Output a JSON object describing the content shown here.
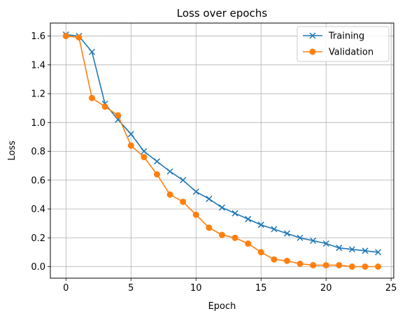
{
  "chart_data": {
    "type": "line",
    "title": "Loss over epochs",
    "xlabel": "Epoch",
    "ylabel": "Loss",
    "xlim": [
      -1.2,
      25.2
    ],
    "ylim": [
      -0.08,
      1.69
    ],
    "xticks": [
      0,
      5,
      10,
      15,
      20,
      25
    ],
    "yticks": [
      0.0,
      0.2,
      0.4,
      0.6,
      0.8,
      1.0,
      1.2,
      1.4,
      1.6
    ],
    "grid": true,
    "legend_position": "top-right",
    "x": [
      0,
      1,
      2,
      3,
      4,
      5,
      6,
      7,
      8,
      9,
      10,
      11,
      12,
      13,
      14,
      15,
      16,
      17,
      18,
      19,
      20,
      21,
      22,
      23,
      24
    ],
    "series": [
      {
        "name": "Training",
        "color": "#1f77b4",
        "marker": "x",
        "values": [
          1.61,
          1.6,
          1.49,
          1.13,
          1.02,
          0.92,
          0.8,
          0.73,
          0.66,
          0.6,
          0.52,
          0.47,
          0.41,
          0.37,
          0.33,
          0.29,
          0.26,
          0.23,
          0.2,
          0.18,
          0.16,
          0.13,
          0.12,
          0.11,
          0.1
        ]
      },
      {
        "name": "Validation",
        "color": "#ff7f0e",
        "marker": "circle",
        "values": [
          1.6,
          1.59,
          1.17,
          1.11,
          1.05,
          0.84,
          0.76,
          0.64,
          0.5,
          0.45,
          0.36,
          0.27,
          0.22,
          0.2,
          0.16,
          0.1,
          0.05,
          0.04,
          0.02,
          0.01,
          0.01,
          0.01,
          0.0,
          0.0,
          0.0
        ]
      }
    ]
  }
}
